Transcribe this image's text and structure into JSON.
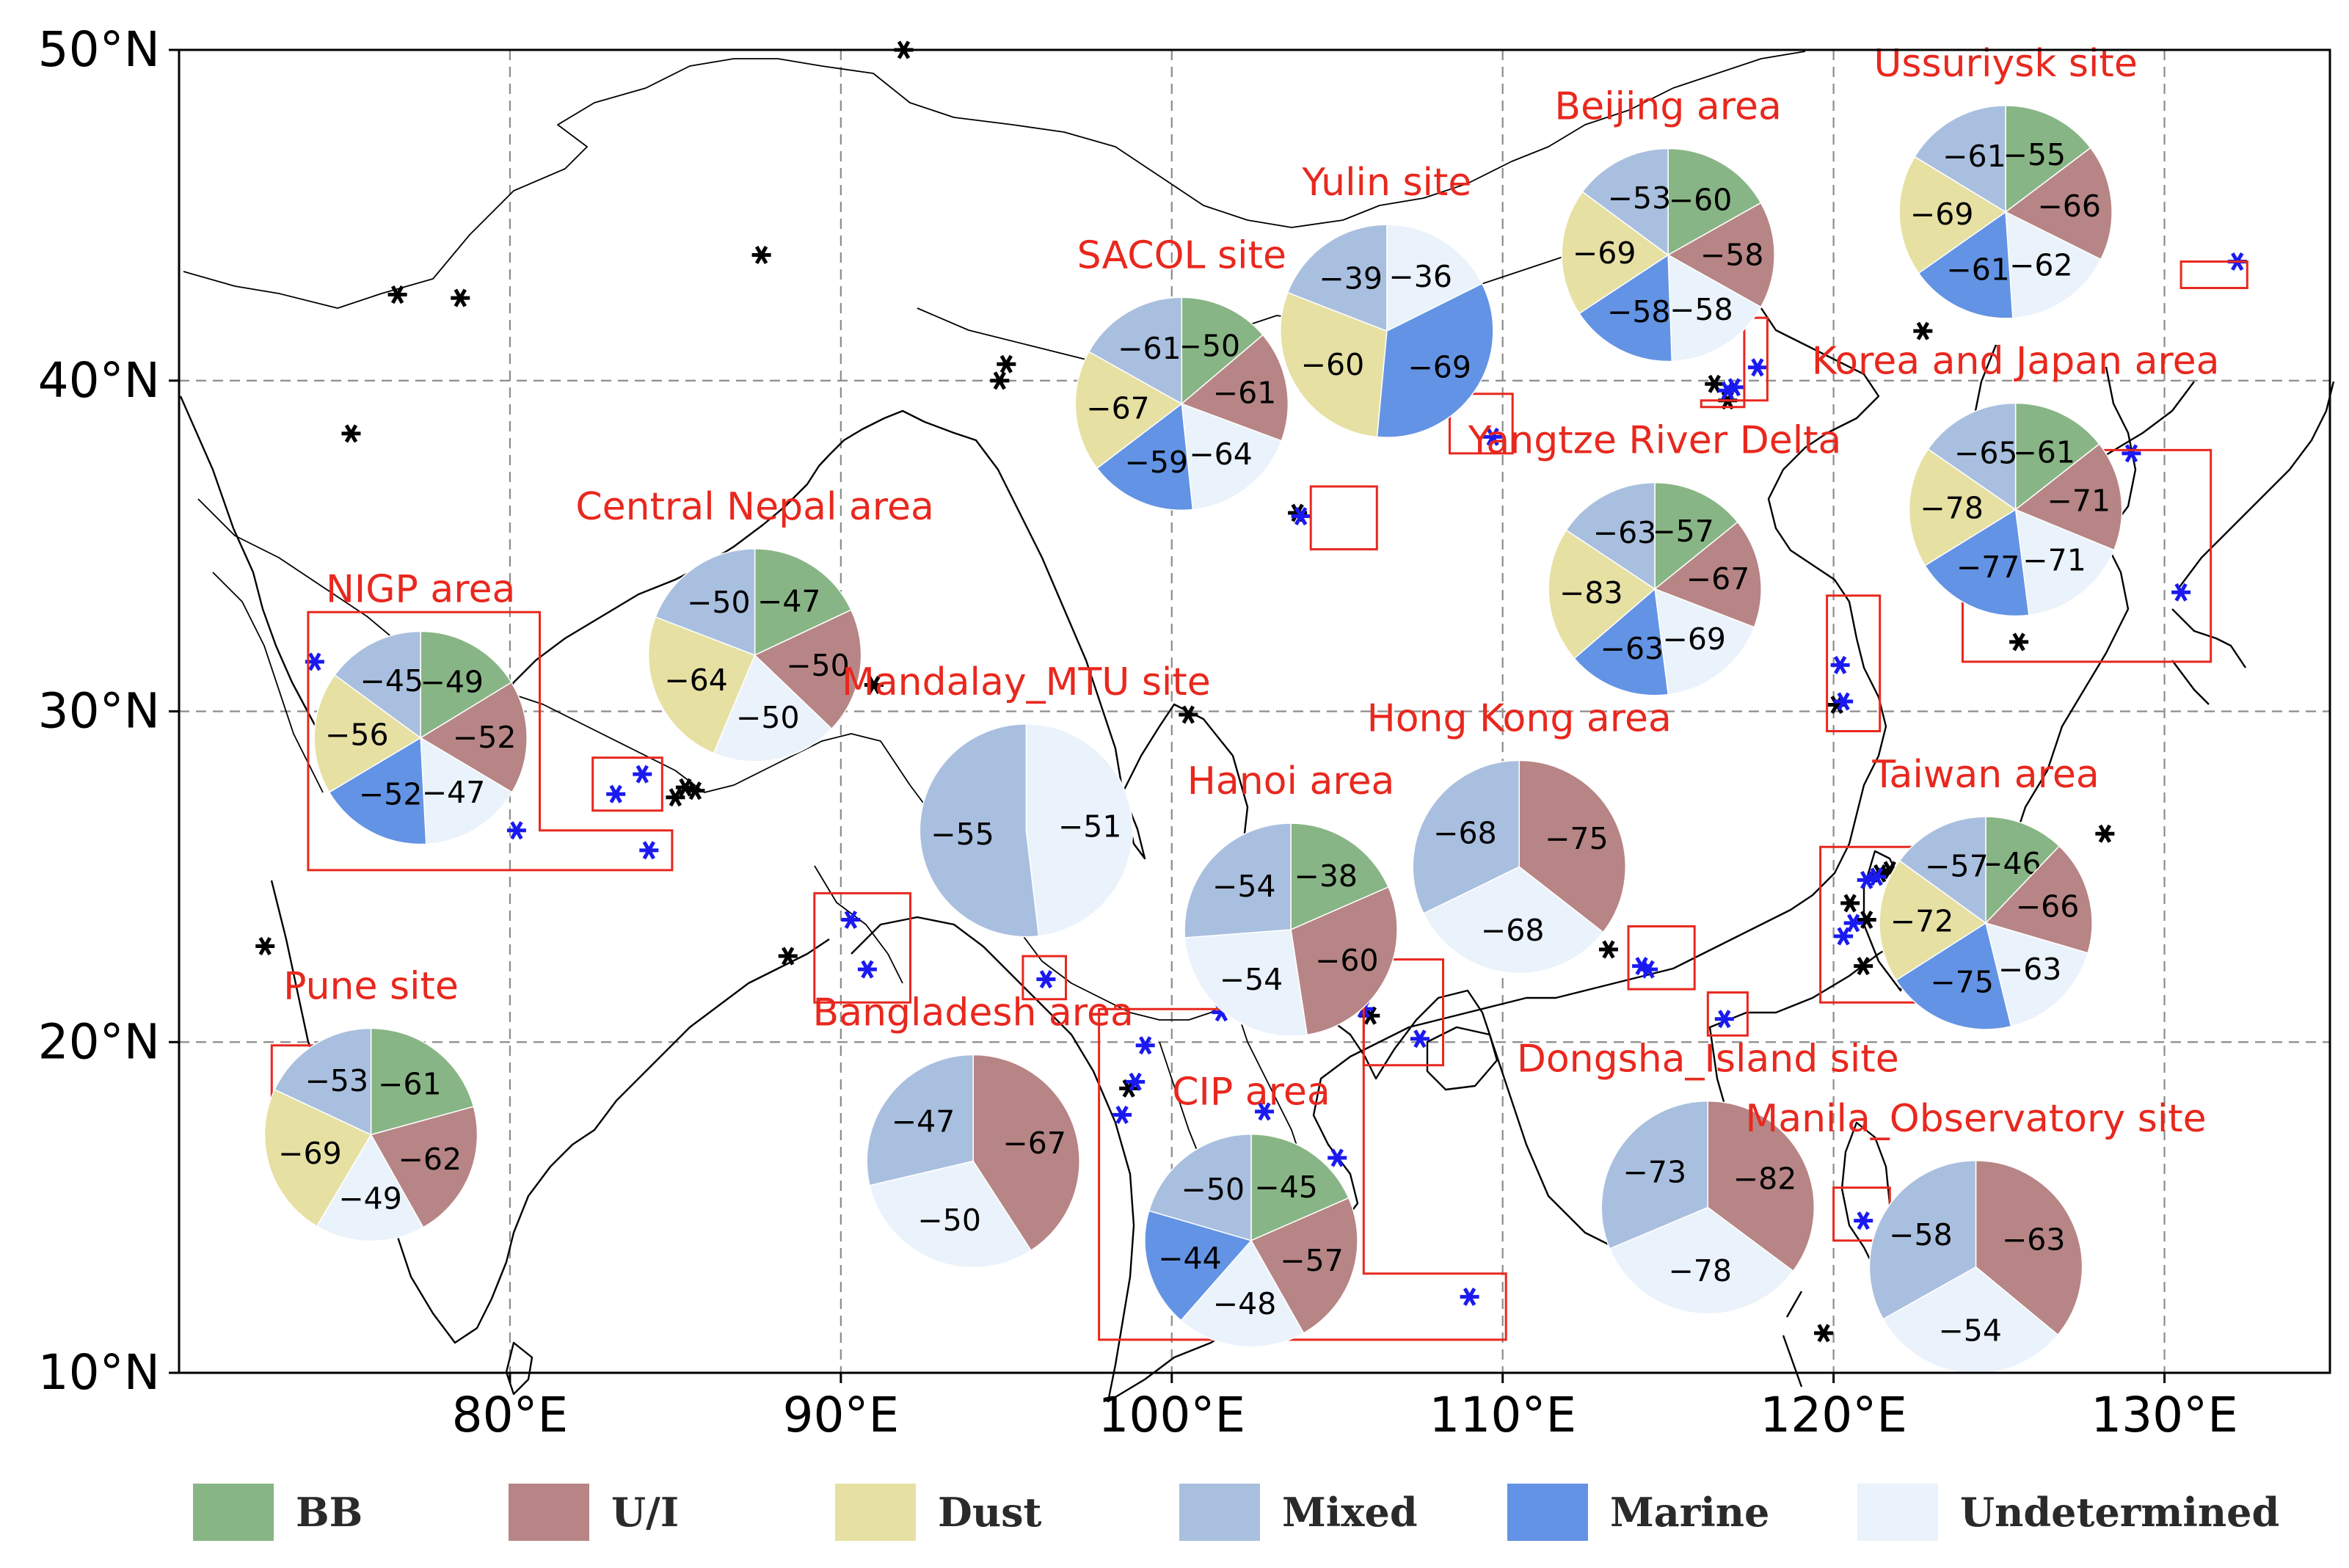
{
  "map": {
    "lon_range": [
      70,
      135
    ],
    "lat_range": [
      10,
      50
    ],
    "lon_ticks": [
      {
        "value": 80,
        "label": "80°E"
      },
      {
        "value": 90,
        "label": "90°E"
      },
      {
        "value": 100,
        "label": "100°E"
      },
      {
        "value": 110,
        "label": "110°E"
      },
      {
        "value": 120,
        "label": "120°E"
      },
      {
        "value": 130,
        "label": "130°E"
      }
    ],
    "lat_ticks": [
      {
        "value": 10,
        "label": "10°N"
      },
      {
        "value": 20,
        "label": "20°N"
      },
      {
        "value": 30,
        "label": "30°N"
      },
      {
        "value": 40,
        "label": "40°N"
      },
      {
        "value": 50,
        "label": "50°N"
      }
    ],
    "grid": true,
    "categories": [
      {
        "key": "bb",
        "label": "BB",
        "color": "#88b585"
      },
      {
        "key": "ui",
        "label": "U/I",
        "color": "#b78585"
      },
      {
        "key": "dust",
        "label": "Dust",
        "color": "#e6e0a3"
      },
      {
        "key": "mixed",
        "label": "Mixed",
        "color": "#a9bfdf"
      },
      {
        "key": "marine",
        "label": "Marine",
        "color": "#6393e4"
      },
      {
        "key": "undetermined",
        "label": "Undetermined",
        "color": "#eaf2fb"
      }
    ],
    "regions": [
      {
        "name": "Ussuriysk site",
        "center": [
          125.2,
          45.1
        ],
        "box": [
          [
            130.5,
            42.8
          ],
          [
            132.5,
            42.8
          ],
          [
            132.5,
            43.6
          ],
          [
            130.5,
            43.6
          ]
        ],
        "values": {
          "bb": -55,
          "ui": -66,
          "undetermined": -62,
          "marine": -61,
          "dust": -69,
          "mixed": -61
        }
      },
      {
        "name": "Beijing area",
        "center": [
          115.0,
          43.8
        ],
        "box": [
          [
            116,
            39.2
          ],
          [
            117.3,
            39.2
          ],
          [
            117.3,
            41.9
          ],
          [
            118,
            41.9
          ],
          [
            118,
            39.4
          ],
          [
            116,
            39.4
          ]
        ],
        "values": {
          "bb": -60,
          "ui": -58,
          "undetermined": -58,
          "marine": -58,
          "dust": -69,
          "mixed": -53
        }
      },
      {
        "name": "Yulin site",
        "center": [
          106.5,
          41.5
        ],
        "box": [
          [
            108.4,
            37.8
          ],
          [
            110.3,
            37.8
          ],
          [
            110.3,
            39.6
          ],
          [
            108.4,
            39.6
          ]
        ],
        "values": {
          "mixed": -39,
          "undetermined": -36,
          "marine": -69,
          "dust": -60
        }
      },
      {
        "name": "SACOL site",
        "center": [
          100.3,
          39.3
        ],
        "box": [
          [
            104.2,
            34.9
          ],
          [
            106.2,
            34.9
          ],
          [
            106.2,
            36.8
          ],
          [
            104.2,
            36.8
          ]
        ],
        "values": {
          "bb": -50,
          "ui": -61,
          "undetermined": -64,
          "marine": -59,
          "dust": -67,
          "mixed": -61
        }
      },
      {
        "name": "Yangtze River Delta",
        "center": [
          114.6,
          33.7
        ],
        "box": [
          [
            119.8,
            29.4
          ],
          [
            121.4,
            29.4
          ],
          [
            121.4,
            33.5
          ],
          [
            119.8,
            33.5
          ]
        ],
        "values": {
          "bb": -57,
          "ui": -67,
          "undetermined": -69,
          "marine": -63,
          "dust": -83,
          "mixed": -63
        }
      },
      {
        "name": "Korea and Japan area",
        "center": [
          125.5,
          36.1
        ],
        "box": [
          [
            123.9,
            31.5
          ],
          [
            131.4,
            31.5
          ],
          [
            131.4,
            37.9
          ],
          [
            123.9,
            37.9
          ]
        ],
        "values": {
          "bb": -61,
          "ui": -71,
          "undetermined": -71,
          "marine": -77,
          "dust": -78,
          "mixed": -65
        }
      },
      {
        "name": "Central Nepal area",
        "center": [
          87.4,
          31.7
        ],
        "box": [
          [
            82.5,
            27.0
          ],
          [
            84.6,
            27.0
          ],
          [
            84.6,
            28.6
          ],
          [
            82.5,
            28.6
          ]
        ],
        "values": {
          "bb": -47,
          "ui": -50,
          "undetermined": -50,
          "marine": 0,
          "dust": -64,
          "mixed": -50
        }
      },
      {
        "name": "NIGP area",
        "center": [
          77.3,
          29.2
        ],
        "box": [
          [
            73.9,
            25.2
          ],
          [
            84.9,
            25.2
          ],
          [
            84.9,
            26.4
          ],
          [
            80.9,
            26.4
          ],
          [
            80.9,
            33.0
          ],
          [
            73.9,
            33.0
          ]
        ],
        "values": {
          "bb": -49,
          "ui": -52,
          "undetermined": -47,
          "marine": -52,
          "dust": -56,
          "mixed": -45
        }
      },
      {
        "name": "Mandalay_MTU site",
        "center": [
          95.6,
          26.4
        ],
        "box": [
          [
            95.5,
            21.3
          ],
          [
            96.8,
            21.3
          ],
          [
            96.8,
            22.6
          ],
          [
            95.5,
            22.6
          ]
        ],
        "values": {
          "mixed": -55,
          "undetermined": -51
        }
      },
      {
        "name": "Bangladesh area",
        "center": [
          94.0,
          16.4
        ],
        "box": [
          [
            89.2,
            21.2
          ],
          [
            92.1,
            21.2
          ],
          [
            92.1,
            24.5
          ],
          [
            89.2,
            24.5
          ]
        ],
        "values": {
          "ui": -67,
          "undetermined": -50,
          "mixed": -47
        }
      },
      {
        "name": "Hanoi area",
        "center": [
          103.6,
          23.4
        ],
        "box": [
          [
            105.8,
            19.3
          ],
          [
            108.2,
            19.3
          ],
          [
            108.2,
            22.5
          ],
          [
            105.8,
            22.5
          ]
        ],
        "values": {
          "bb": -38,
          "ui": -60,
          "undetermined": -54,
          "mixed": -54
        }
      },
      {
        "name": "Hong Kong area",
        "center": [
          110.5,
          25.3
        ],
        "box": [
          [
            113.8,
            21.6
          ],
          [
            115.8,
            21.6
          ],
          [
            115.8,
            23.5
          ],
          [
            113.8,
            23.5
          ]
        ],
        "values": {
          "ui": -75,
          "undetermined": -68,
          "mixed": -68
        }
      },
      {
        "name": "Taiwan area",
        "center": [
          124.6,
          23.6
        ],
        "box": [
          [
            119.6,
            21.2
          ],
          [
            122.9,
            21.2
          ],
          [
            122.9,
            25.9
          ],
          [
            119.6,
            25.9
          ]
        ],
        "values": {
          "bb": -46,
          "ui": -66,
          "undetermined": -63,
          "marine": -75,
          "dust": -72,
          "mixed": -57
        }
      },
      {
        "name": "Pune site",
        "center": [
          75.8,
          17.2
        ],
        "box": [
          [
            72.8,
            17.8
          ],
          [
            74.6,
            17.8
          ],
          [
            74.6,
            19.9
          ],
          [
            72.8,
            19.9
          ]
        ],
        "values": {
          "bb": -61,
          "ui": -62,
          "undetermined": -49,
          "dust": -69,
          "mixed": -53
        }
      },
      {
        "name": "CIP area",
        "center": [
          102.4,
          14.0
        ],
        "box": [
          [
            97.8,
            11.0
          ],
          [
            110.1,
            11.0
          ],
          [
            110.1,
            13.0
          ],
          [
            105.8,
            13.0
          ],
          [
            105.8,
            21.0
          ],
          [
            97.8,
            21.0
          ]
        ],
        "values": {
          "bb": -45,
          "ui": -57,
          "undetermined": -48,
          "marine": -44,
          "mixed": -50
        }
      },
      {
        "name": "Dongsha_Island site",
        "center": [
          116.2,
          15.0
        ],
        "box": [
          [
            116.2,
            20.2
          ],
          [
            117.4,
            20.2
          ],
          [
            117.4,
            21.5
          ],
          [
            116.2,
            21.5
          ]
        ],
        "values": {
          "ui": -82,
          "undetermined": -78,
          "mixed": -73
        }
      },
      {
        "name": "Manila_Observatory site",
        "center": [
          124.3,
          13.2
        ],
        "box": [
          [
            120.0,
            14.0
          ],
          [
            121.7,
            14.0
          ],
          [
            121.7,
            15.6
          ],
          [
            120.0,
            15.6
          ]
        ],
        "values": {
          "ui": -63,
          "undetermined": -54,
          "mixed": -58
        }
      }
    ]
  },
  "chart_data": {
    "type": "pie",
    "xlabel": "",
    "ylabel": "",
    "legend_placement": "bottom",
    "pies": [
      {
        "title": "Ussuriysk site",
        "labels": [
          "BB",
          "U/I",
          "Undetermined",
          "Marine",
          "Dust",
          "Mixed"
        ],
        "values": [
          -55,
          -66,
          -62,
          -61,
          -69,
          -61
        ]
      },
      {
        "title": "Beijing area",
        "labels": [
          "BB",
          "U/I",
          "Undetermined",
          "Marine",
          "Dust",
          "Mixed"
        ],
        "values": [
          -60,
          -58,
          -58,
          -58,
          -69,
          -53
        ]
      },
      {
        "title": "Yulin site",
        "labels": [
          "Mixed",
          "Undetermined",
          "Marine",
          "Dust"
        ],
        "values": [
          -39,
          -36,
          -69,
          -60
        ]
      },
      {
        "title": "SACOL site",
        "labels": [
          "BB",
          "U/I",
          "Undetermined",
          "Marine",
          "Dust",
          "Mixed"
        ],
        "values": [
          -50,
          -61,
          -64,
          -59,
          -67,
          -61
        ]
      },
      {
        "title": "Yangtze River Delta",
        "labels": [
          "BB",
          "U/I",
          "Undetermined",
          "Marine",
          "Dust",
          "Mixed"
        ],
        "values": [
          -57,
          -67,
          -69,
          -63,
          -83,
          -63
        ]
      },
      {
        "title": "Korea and Japan area",
        "labels": [
          "BB",
          "U/I",
          "Undetermined",
          "Marine",
          "Dust",
          "Mixed"
        ],
        "values": [
          -61,
          -71,
          -71,
          -77,
          -78,
          -65
        ]
      },
      {
        "title": "Central Nepal area",
        "labels": [
          "BB",
          "U/I",
          "Undetermined",
          "Dust",
          "Mixed"
        ],
        "values": [
          -47,
          -50,
          -50,
          -64,
          -50
        ]
      },
      {
        "title": "NIGP area",
        "labels": [
          "BB",
          "U/I",
          "Undetermined",
          "Marine",
          "Dust",
          "Mixed"
        ],
        "values": [
          -49,
          -52,
          -47,
          -52,
          -56,
          -45
        ]
      },
      {
        "title": "Mandalay_MTU site",
        "labels": [
          "Mixed",
          "Undetermined"
        ],
        "values": [
          -55,
          -51
        ]
      },
      {
        "title": "Bangladesh area",
        "labels": [
          "U/I",
          "Undetermined",
          "Mixed"
        ],
        "values": [
          -67,
          -50,
          -47
        ]
      },
      {
        "title": "Hanoi area",
        "labels": [
          "BB",
          "U/I",
          "Undetermined",
          "Mixed"
        ],
        "values": [
          -38,
          -60,
          -54,
          -54
        ]
      },
      {
        "title": "Hong Kong area",
        "labels": [
          "U/I",
          "Undetermined",
          "Mixed"
        ],
        "values": [
          -75,
          -68,
          -68
        ]
      },
      {
        "title": "Taiwan area",
        "labels": [
          "BB",
          "U/I",
          "Undetermined",
          "Marine",
          "Dust",
          "Mixed"
        ],
        "values": [
          -46,
          -66,
          -63,
          -75,
          -72,
          -57
        ]
      },
      {
        "title": "Pune site",
        "labels": [
          "BB",
          "U/I",
          "Undetermined",
          "Dust",
          "Mixed"
        ],
        "values": [
          -61,
          -62,
          -49,
          -69,
          -53
        ]
      },
      {
        "title": "CIP area",
        "labels": [
          "BB",
          "U/I",
          "Undetermined",
          "Marine",
          "Mixed"
        ],
        "values": [
          -45,
          -57,
          -48,
          -44,
          -50
        ]
      },
      {
        "title": "Dongsha_Island site",
        "labels": [
          "U/I",
          "Undetermined",
          "Mixed"
        ],
        "values": [
          -82,
          -78,
          -73
        ]
      },
      {
        "title": "Manila_Observatory site",
        "labels": [
          "U/I",
          "Undetermined",
          "Mixed"
        ],
        "values": [
          -63,
          -54,
          -58
        ]
      }
    ]
  },
  "stations_black": [
    [
      76.6,
      42.6
    ],
    [
      78.5,
      42.5
    ],
    [
      75.2,
      38.4
    ],
    [
      87.6,
      43.8
    ],
    [
      94.8,
      40.0
    ],
    [
      95.0,
      40.5
    ],
    [
      104.7,
      43.6
    ],
    [
      91.9,
      50.0
    ],
    [
      103.8,
      36.0
    ],
    [
      116.4,
      39.9
    ],
    [
      116.8,
      39.4
    ],
    [
      122.7,
      41.5
    ],
    [
      124.8,
      37.4
    ],
    [
      125.6,
      32.1
    ],
    [
      91.0,
      30.8
    ],
    [
      100.5,
      29.9
    ],
    [
      85.0,
      27.4
    ],
    [
      85.3,
      27.7
    ],
    [
      85.6,
      27.6
    ],
    [
      88.4,
      22.6
    ],
    [
      98.7,
      18.6
    ],
    [
      106.0,
      20.8
    ],
    [
      113.2,
      22.8
    ],
    [
      120.1,
      30.2
    ],
    [
      120.5,
      24.2
    ],
    [
      121.0,
      23.7
    ],
    [
      120.9,
      22.3
    ],
    [
      121.4,
      25.1
    ],
    [
      121.7,
      25.2
    ],
    [
      128.2,
      26.3
    ],
    [
      72.6,
      22.9
    ],
    [
      119.7,
      11.2
    ],
    [
      124.6,
      10.4
    ]
  ],
  "stations_blue": [
    [
      74.1,
      31.5
    ],
    [
      80.2,
      26.4
    ],
    [
      84.0,
      28.1
    ],
    [
      83.2,
      27.5
    ],
    [
      84.2,
      25.8
    ],
    [
      103.9,
      35.9
    ],
    [
      109.7,
      38.3
    ],
    [
      116.8,
      39.7
    ],
    [
      117.0,
      39.8
    ],
    [
      117.7,
      40.4
    ],
    [
      124.8,
      37.9
    ],
    [
      129.0,
      37.8
    ],
    [
      130.5,
      33.6
    ],
    [
      132.2,
      43.6
    ],
    [
      120.2,
      31.4
    ],
    [
      120.3,
      30.3
    ],
    [
      90.3,
      23.7
    ],
    [
      90.8,
      22.2
    ],
    [
      96.2,
      21.9
    ],
    [
      99.2,
      19.9
    ],
    [
      98.9,
      18.8
    ],
    [
      98.5,
      17.8
    ],
    [
      101.5,
      20.9
    ],
    [
      102.8,
      17.9
    ],
    [
      105.0,
      16.5
    ],
    [
      107.5,
      20.1
    ],
    [
      105.8,
      21.0
    ],
    [
      114.2,
      22.3
    ],
    [
      114.4,
      22.2
    ],
    [
      116.7,
      20.7
    ],
    [
      109.0,
      12.3
    ],
    [
      120.3,
      23.2
    ],
    [
      120.6,
      23.6
    ],
    [
      121.0,
      24.9
    ],
    [
      121.3,
      25.0
    ],
    [
      120.9,
      14.6
    ]
  ]
}
